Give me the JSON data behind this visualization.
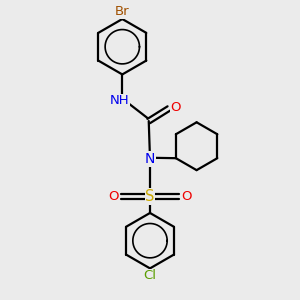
{
  "bg_color": "#ebebeb",
  "bond_color": "#000000",
  "atom_colors": {
    "Br": "#a05000",
    "Cl": "#5a9e00",
    "N": "#0000ee",
    "O": "#ee0000",
    "S": "#ccaa00",
    "H": "#666666"
  },
  "bond_lw": 1.6,
  "font_size_atom": 9.5,
  "font_size_hetero": 9.0
}
